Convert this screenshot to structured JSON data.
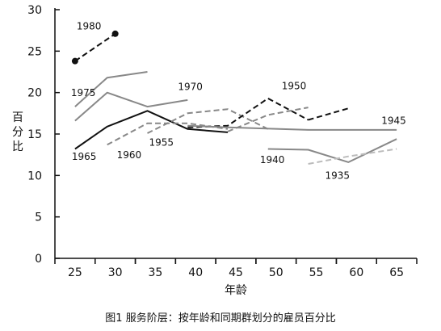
{
  "chart_data": {
    "type": "line",
    "caption": "图1 服务阶层：按年龄和同期群划分的雇员百分比",
    "xlabel": "年龄",
    "ylabel": "百分比",
    "xlim": [
      22.5,
      67.5
    ],
    "ylim": [
      0,
      30
    ],
    "x_ticks": [
      25,
      30,
      35,
      40,
      45,
      50,
      55,
      60,
      65
    ],
    "y_ticks": [
      0,
      5,
      10,
      15,
      20,
      25,
      30
    ],
    "grid": false,
    "legend": "none (series labeled inline)",
    "series": [
      {
        "name": "1980",
        "color": "#111111",
        "dash": "dashed",
        "markers": true,
        "x": [
          25,
          30
        ],
        "y": [
          23.8,
          27.1
        ]
      },
      {
        "name": "1975",
        "color": "#888888",
        "dash": "solid",
        "x": [
          25,
          29,
          34
        ],
        "y": [
          18.3,
          21.8,
          22.5
        ]
      },
      {
        "name": "1970",
        "color": "#888888",
        "dash": "solid",
        "x": [
          25,
          29,
          34,
          39
        ],
        "y": [
          16.6,
          20.0,
          18.3,
          19.1
        ]
      },
      {
        "name": "1965",
        "color": "#111111",
        "dash": "solid",
        "x": [
          25,
          29,
          34,
          39,
          44
        ],
        "y": [
          13.2,
          15.9,
          17.8,
          15.6,
          15.2
        ]
      },
      {
        "name": "1960",
        "color": "#888888",
        "dash": "dashed",
        "x": [
          29,
          34,
          39,
          44
        ],
        "y": [
          13.7,
          16.3,
          16.3,
          15.6
        ]
      },
      {
        "name": "1955",
        "color": "#888888",
        "dash": "dashed",
        "x": [
          34,
          39,
          44,
          49
        ],
        "y": [
          15.1,
          17.5,
          18.0,
          15.6
        ]
      },
      {
        "name": "1950",
        "color": "#111111",
        "dash": "dashed",
        "x": [
          39,
          44,
          49,
          54
        ],
        "y": [
          15.8,
          16.0,
          19.3,
          16.7
        ]
      },
      {
        "name": "1945",
        "color": "#111111",
        "dash": "dashed",
        "x": [
          54,
          59
        ],
        "y": [
          16.7,
          18.1
        ]
      },
      {
        "name": "",
        "color": "#888888",
        "dash": "dashed",
        "x": [
          44,
          49,
          54
        ],
        "y": [
          15.3,
          17.3,
          18.2
        ]
      },
      {
        "name": "",
        "color": "#888888",
        "dash": "solid",
        "x": [
          39,
          44,
          54,
          65
        ],
        "y": [
          16.0,
          15.8,
          15.5,
          15.5
        ]
      },
      {
        "name": "1940",
        "color": "#888888",
        "dash": "solid",
        "x": [
          49,
          54,
          59,
          65
        ],
        "y": [
          13.2,
          13.1,
          11.6,
          14.4
        ]
      },
      {
        "name": "1935",
        "color": "#bbbbbb",
        "dash": "dashed",
        "x": [
          54,
          59,
          65
        ],
        "y": [
          11.4,
          12.3,
          13.2
        ]
      }
    ],
    "series_labels": [
      {
        "text": "1980",
        "x": 25.2,
        "y": 27.6
      },
      {
        "text": "1975",
        "x": 24.5,
        "y": 19.6
      },
      {
        "text": "1970",
        "x": 37.8,
        "y": 20.3
      },
      {
        "text": "1965",
        "x": 24.6,
        "y": 11.9
      },
      {
        "text": "1960",
        "x": 30.2,
        "y": 12.1
      },
      {
        "text": "1955",
        "x": 34.2,
        "y": 13.6
      },
      {
        "text": "1950",
        "x": 50.7,
        "y": 20.4
      },
      {
        "text": "1945",
        "x": 63.1,
        "y": 16.2
      },
      {
        "text": "1940",
        "x": 48.0,
        "y": 11.5
      },
      {
        "text": "1935",
        "x": 56.1,
        "y": 9.6
      }
    ]
  }
}
